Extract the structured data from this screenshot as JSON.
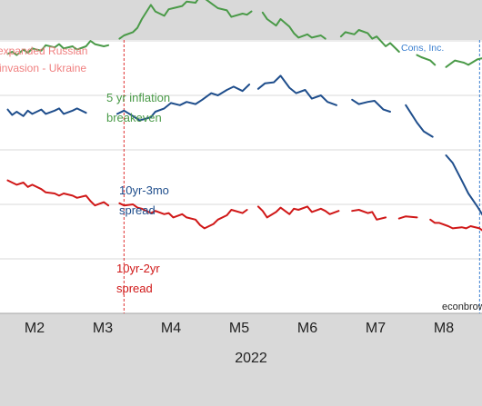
{
  "chart_data": {
    "type": "line",
    "xlabel": "2022",
    "ylabel": "",
    "x_ticks": [
      "M2",
      "M3",
      "M4",
      "M5",
      "M6",
      "M7",
      "M8"
    ],
    "grid": "horizontal",
    "legend": "inline labels",
    "colors": {
      "inflation": "#4a9a48",
      "spread_3mo": "#1f4e8c",
      "spread_2yr": "#d01818",
      "invasion_line": "#e03030",
      "cons_line": "#3a7fd0"
    },
    "annotations": {
      "invasion_line1": "expanded Russian",
      "invasion_line2": "invasion - Ukraine",
      "invasion_date": "2022-02-24",
      "cons_label": "Cons, Inc.",
      "cons_date": "2022-08-02",
      "source": "econbrow"
    },
    "series": [
      {
        "name": "5 yr inflation breakeven",
        "label_line1": "5 yr inflation",
        "label_line2": "breakeven",
        "color_key": "inflation",
        "points": [
          [
            "2022-01-03",
            2.88
          ],
          [
            "2022-01-05",
            2.9
          ],
          [
            "2022-01-07",
            2.87
          ],
          [
            "2022-01-10",
            2.92
          ],
          [
            "2022-01-12",
            2.89
          ],
          [
            "2022-01-14",
            2.93
          ],
          [
            "2022-01-18",
            2.91
          ],
          [
            "2022-01-20",
            2.96
          ],
          [
            "2022-01-24",
            2.94
          ],
          [
            "2022-01-26",
            2.97
          ],
          [
            "2022-01-28",
            2.93
          ],
          [
            "2022-02-01",
            2.95
          ],
          [
            "2022-02-03",
            2.92
          ],
          [
            "2022-02-07",
            2.95
          ],
          [
            "2022-02-09",
            3.0
          ],
          [
            "2022-02-11",
            2.97
          ],
          [
            "2022-02-15",
            2.95
          ],
          [
            "2022-02-17",
            2.96
          ],
          [
            null,
            null
          ],
          [
            "2022-02-22",
            3.02
          ],
          [
            "2022-02-24",
            3.05
          ],
          [
            "2022-02-28",
            3.08
          ],
          [
            "2022-03-02",
            3.12
          ],
          [
            "2022-03-04",
            3.2
          ],
          [
            "2022-03-08",
            3.33
          ],
          [
            "2022-03-10",
            3.27
          ],
          [
            "2022-03-14",
            3.23
          ],
          [
            "2022-03-16",
            3.29
          ],
          [
            "2022-03-18",
            3.3
          ],
          [
            "2022-03-22",
            3.32
          ],
          [
            "2022-03-24",
            3.36
          ],
          [
            "2022-03-28",
            3.35
          ],
          [
            "2022-03-30",
            3.41
          ],
          [
            "2022-04-01",
            3.39
          ],
          [
            "2022-04-05",
            3.33
          ],
          [
            "2022-04-07",
            3.3
          ],
          [
            "2022-04-11",
            3.28
          ],
          [
            "2022-04-13",
            3.22
          ],
          [
            "2022-04-18",
            3.25
          ],
          [
            "2022-04-20",
            3.24
          ],
          [
            "2022-04-22",
            3.27
          ],
          [
            null,
            null
          ],
          [
            "2022-04-27",
            3.26
          ],
          [
            "2022-04-29",
            3.2
          ],
          [
            "2022-05-03",
            3.14
          ],
          [
            "2022-05-05",
            3.2
          ],
          [
            "2022-05-09",
            3.13
          ],
          [
            "2022-05-11",
            3.07
          ],
          [
            "2022-05-13",
            3.03
          ],
          [
            "2022-05-17",
            3.06
          ],
          [
            "2022-05-19",
            3.03
          ],
          [
            "2022-05-23",
            3.05
          ],
          [
            "2022-05-25",
            3.02
          ],
          [
            null,
            null
          ],
          [
            "2022-06-01",
            3.04
          ],
          [
            "2022-06-03",
            3.08
          ],
          [
            "2022-06-07",
            3.06
          ],
          [
            "2022-06-09",
            3.1
          ],
          [
            "2022-06-13",
            3.07
          ],
          [
            "2022-06-15",
            3.02
          ],
          [
            "2022-06-17",
            3.04
          ],
          [
            "2022-06-21",
            2.95
          ],
          [
            "2022-06-23",
            2.98
          ],
          [
            "2022-06-27",
            2.9
          ],
          [
            null,
            null
          ],
          [
            "2022-07-05",
            2.87
          ],
          [
            "2022-07-07",
            2.85
          ],
          [
            "2022-07-11",
            2.82
          ],
          [
            "2022-07-13",
            2.78
          ],
          [
            null,
            null
          ],
          [
            "2022-07-18",
            2.76
          ],
          [
            "2022-07-20",
            2.79
          ],
          [
            "2022-07-22",
            2.82
          ],
          [
            "2022-07-26",
            2.8
          ],
          [
            "2022-07-28",
            2.78
          ],
          [
            "2022-08-01",
            2.83
          ],
          [
            "2022-08-03",
            2.84
          ],
          [
            "2022-08-05",
            2.81
          ]
        ]
      },
      {
        "name": "10yr-3mo spread",
        "label_line1": "10yr-3mo",
        "label_line2": "spread",
        "color_key": "spread_3mo",
        "points": [
          [
            "2022-01-03",
            2.37
          ],
          [
            "2022-01-05",
            2.32
          ],
          [
            "2022-01-07",
            2.35
          ],
          [
            "2022-01-10",
            2.31
          ],
          [
            "2022-01-12",
            2.36
          ],
          [
            "2022-01-14",
            2.33
          ],
          [
            "2022-01-18",
            2.37
          ],
          [
            "2022-01-20",
            2.33
          ],
          [
            "2022-01-24",
            2.36
          ],
          [
            "2022-01-26",
            2.38
          ],
          [
            "2022-01-28",
            2.33
          ],
          [
            "2022-02-01",
            2.36
          ],
          [
            "2022-02-03",
            2.38
          ],
          [
            "2022-02-07",
            2.34
          ],
          [
            null,
            null
          ],
          [
            "2022-02-21",
            2.33
          ],
          [
            "2022-02-24",
            2.36
          ],
          [
            "2022-02-28",
            2.31
          ],
          [
            "2022-03-03",
            2.27
          ],
          [
            "2022-03-08",
            2.3
          ],
          [
            "2022-03-10",
            2.35
          ],
          [
            "2022-03-14",
            2.38
          ],
          [
            "2022-03-17",
            2.43
          ],
          [
            "2022-03-21",
            2.41
          ],
          [
            "2022-03-24",
            2.44
          ],
          [
            "2022-03-28",
            2.42
          ],
          [
            "2022-03-31",
            2.46
          ],
          [
            "2022-04-04",
            2.52
          ],
          [
            "2022-04-07",
            2.5
          ],
          [
            "2022-04-11",
            2.55
          ],
          [
            "2022-04-14",
            2.58
          ],
          [
            "2022-04-18",
            2.54
          ],
          [
            "2022-04-21",
            2.6
          ],
          [
            null,
            null
          ],
          [
            "2022-04-25",
            2.56
          ],
          [
            "2022-04-28",
            2.61
          ],
          [
            "2022-05-02",
            2.62
          ],
          [
            "2022-05-05",
            2.68
          ],
          [
            "2022-05-09",
            2.57
          ],
          [
            "2022-05-12",
            2.52
          ],
          [
            "2022-05-16",
            2.55
          ],
          [
            "2022-05-19",
            2.47
          ],
          [
            "2022-05-23",
            2.5
          ],
          [
            "2022-05-26",
            2.44
          ],
          [
            "2022-05-30",
            2.41
          ],
          [
            null,
            null
          ],
          [
            "2022-06-06",
            2.46
          ],
          [
            "2022-06-09",
            2.42
          ],
          [
            "2022-06-13",
            2.44
          ],
          [
            "2022-06-16",
            2.45
          ],
          [
            "2022-06-20",
            2.37
          ],
          [
            "2022-06-23",
            2.35
          ],
          [
            null,
            null
          ],
          [
            "2022-06-30",
            2.41
          ],
          [
            "2022-07-05",
            2.25
          ],
          [
            "2022-07-08",
            2.17
          ],
          [
            "2022-07-12",
            2.12
          ],
          [
            null,
            null
          ],
          [
            "2022-07-18",
            1.95
          ],
          [
            "2022-07-21",
            1.88
          ],
          [
            "2022-07-25",
            1.72
          ],
          [
            "2022-07-28",
            1.6
          ],
          [
            "2022-08-01",
            1.48
          ],
          [
            "2022-08-04",
            1.38
          ],
          [
            "2022-08-08",
            1.5
          ],
          [
            "2022-08-11",
            1.43
          ],
          [
            "2022-08-15",
            1.44
          ],
          [
            "2022-08-18",
            1.64
          ]
        ]
      },
      {
        "name": "10yr-2yr spread",
        "label_line1": "10yr-2yr",
        "label_line2": "spread",
        "color_key": "spread_2yr",
        "points": [
          [
            "2022-01-03",
            1.72
          ],
          [
            "2022-01-05",
            1.7
          ],
          [
            "2022-01-07",
            1.68
          ],
          [
            "2022-01-10",
            1.7
          ],
          [
            "2022-01-12",
            1.66
          ],
          [
            "2022-01-14",
            1.68
          ],
          [
            "2022-01-18",
            1.64
          ],
          [
            "2022-01-20",
            1.61
          ],
          [
            "2022-01-24",
            1.6
          ],
          [
            "2022-01-26",
            1.58
          ],
          [
            "2022-01-28",
            1.6
          ],
          [
            "2022-02-01",
            1.58
          ],
          [
            "2022-02-03",
            1.56
          ],
          [
            "2022-02-07",
            1.58
          ],
          [
            "2022-02-09",
            1.53
          ],
          [
            "2022-02-11",
            1.49
          ],
          [
            "2022-02-15",
            1.52
          ],
          [
            "2022-02-17",
            1.49
          ],
          [
            null,
            null
          ],
          [
            "2022-02-22",
            1.51
          ],
          [
            "2022-02-24",
            1.49
          ],
          [
            "2022-02-28",
            1.5
          ],
          [
            "2022-03-02",
            1.47
          ],
          [
            "2022-03-04",
            1.46
          ],
          [
            "2022-03-08",
            1.42
          ],
          [
            "2022-03-10",
            1.44
          ],
          [
            "2022-03-14",
            1.41
          ],
          [
            "2022-03-16",
            1.42
          ],
          [
            "2022-03-18",
            1.38
          ],
          [
            "2022-03-22",
            1.41
          ],
          [
            "2022-03-24",
            1.38
          ],
          [
            "2022-03-28",
            1.36
          ],
          [
            "2022-03-30",
            1.31
          ],
          [
            "2022-04-01",
            1.28
          ],
          [
            "2022-04-05",
            1.32
          ],
          [
            "2022-04-07",
            1.36
          ],
          [
            "2022-04-11",
            1.4
          ],
          [
            "2022-04-13",
            1.45
          ],
          [
            "2022-04-18",
            1.42
          ],
          [
            "2022-04-20",
            1.45
          ],
          [
            null,
            null
          ],
          [
            "2022-04-25",
            1.48
          ],
          [
            "2022-04-27",
            1.44
          ],
          [
            "2022-04-29",
            1.38
          ],
          [
            "2022-05-03",
            1.43
          ],
          [
            "2022-05-05",
            1.47
          ],
          [
            "2022-05-09",
            1.41
          ],
          [
            "2022-05-11",
            1.46
          ],
          [
            "2022-05-13",
            1.45
          ],
          [
            "2022-05-17",
            1.48
          ],
          [
            "2022-05-19",
            1.43
          ],
          [
            "2022-05-23",
            1.46
          ],
          [
            "2022-05-25",
            1.44
          ],
          [
            "2022-05-27",
            1.41
          ],
          [
            "2022-05-31",
            1.44
          ],
          [
            null,
            null
          ],
          [
            "2022-06-06",
            1.44
          ],
          [
            "2022-06-09",
            1.45
          ],
          [
            "2022-06-13",
            1.42
          ],
          [
            "2022-06-15",
            1.43
          ],
          [
            "2022-06-17",
            1.36
          ],
          [
            "2022-06-21",
            1.38
          ],
          [
            null,
            null
          ],
          [
            "2022-06-27",
            1.37
          ],
          [
            "2022-06-30",
            1.39
          ],
          [
            "2022-07-05",
            1.38
          ],
          [
            null,
            null
          ],
          [
            "2022-07-11",
            1.36
          ],
          [
            "2022-07-13",
            1.33
          ],
          [
            "2022-07-15",
            1.33
          ],
          [
            "2022-07-19",
            1.3
          ],
          [
            "2022-07-21",
            1.28
          ],
          [
            "2022-07-25",
            1.29
          ],
          [
            "2022-07-27",
            1.28
          ],
          [
            "2022-07-29",
            1.3
          ],
          [
            "2022-08-02",
            1.28
          ],
          [
            "2022-08-04",
            1.25
          ],
          [
            "2022-08-08",
            1.21
          ]
        ]
      }
    ]
  }
}
